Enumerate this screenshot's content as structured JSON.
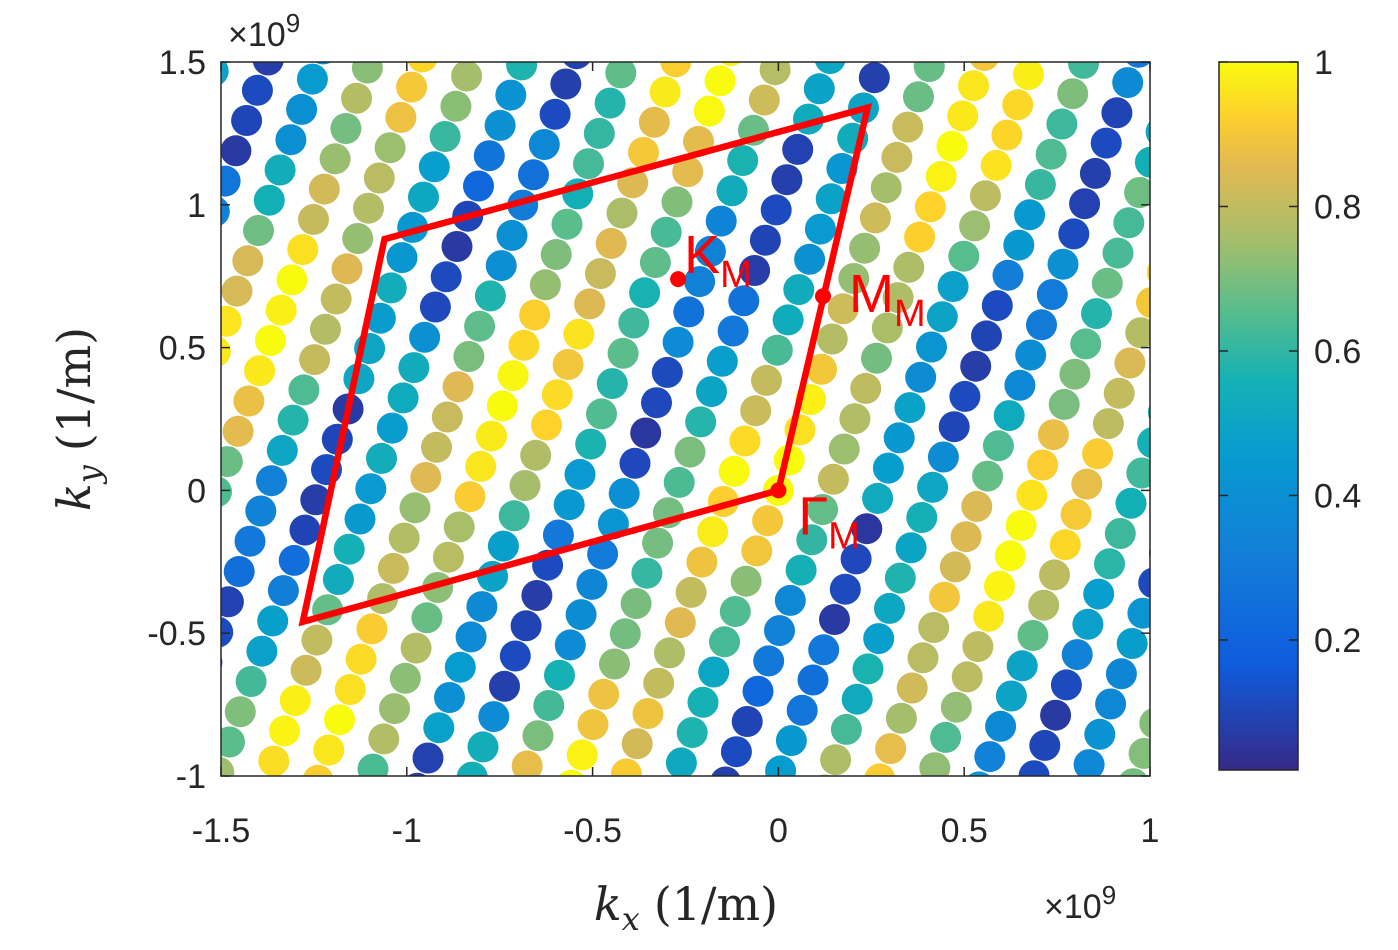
{
  "chart_data": {
    "type": "scatter",
    "title": "",
    "xlabel": "k_x (1/m)",
    "ylabel": "k_y (1/m)",
    "xlabel_parts": {
      "var": "k",
      "sub": "x",
      "unit": "(1/m)"
    },
    "ylabel_parts": {
      "var": "k",
      "sub": "y",
      "unit": "(1/m)"
    },
    "xlim": [
      -1.5,
      1.0
    ],
    "ylim": [
      -1.0,
      1.5
    ],
    "x_multiplier": "×10^9",
    "y_multiplier": "×10^9",
    "x_multiplier_text": {
      "base": "×10",
      "exp": "9"
    },
    "y_multiplier_text": {
      "base": "×10",
      "exp": "9"
    },
    "xticks": [
      -1.5,
      -1,
      -0.5,
      0,
      0.5,
      1
    ],
    "yticks": [
      -1,
      -0.5,
      0,
      0.5,
      1,
      1.5
    ],
    "xtick_labels": [
      "-1.5",
      "-1",
      "-0.5",
      "0",
      "0.5",
      "1"
    ],
    "ytick_labels": [
      "-1",
      "-0.5",
      "0",
      "0.5",
      "1",
      "1.5"
    ],
    "colormap": "parula",
    "colorbar": {
      "range": [
        0.02,
        1.0
      ],
      "ticks": [
        0.2,
        0.4,
        0.6,
        0.8,
        1.0
      ],
      "tick_labels": [
        "0.2",
        "0.4",
        "0.6",
        "0.8",
        "1"
      ]
    },
    "lattice": {
      "a1": [
        0.148,
        0.039
      ],
      "a2": [
        0.029,
        0.106
      ],
      "value_field": "periodic with moiré cell; minima along lines parallel to G→K_M, maxima near cell interior",
      "marker_color_scale": [
        0.02,
        1.0
      ]
    },
    "brillouin_zone": {
      "color": "#ff0000",
      "vertices": [
        [
          0.0,
          0.0
        ],
        [
          -1.28,
          -0.46
        ],
        [
          -1.06,
          0.88
        ],
        [
          0.24,
          1.34
        ]
      ]
    },
    "points": [
      {
        "name": "K",
        "sub": "M",
        "x": -0.27,
        "y": 0.74
      },
      {
        "name": "M",
        "sub": "M",
        "x": 0.12,
        "y": 0.68
      },
      {
        "name": "Γ",
        "sub": "M",
        "x": 0.0,
        "y": 0.0
      }
    ],
    "grid": false,
    "legend": "none"
  }
}
